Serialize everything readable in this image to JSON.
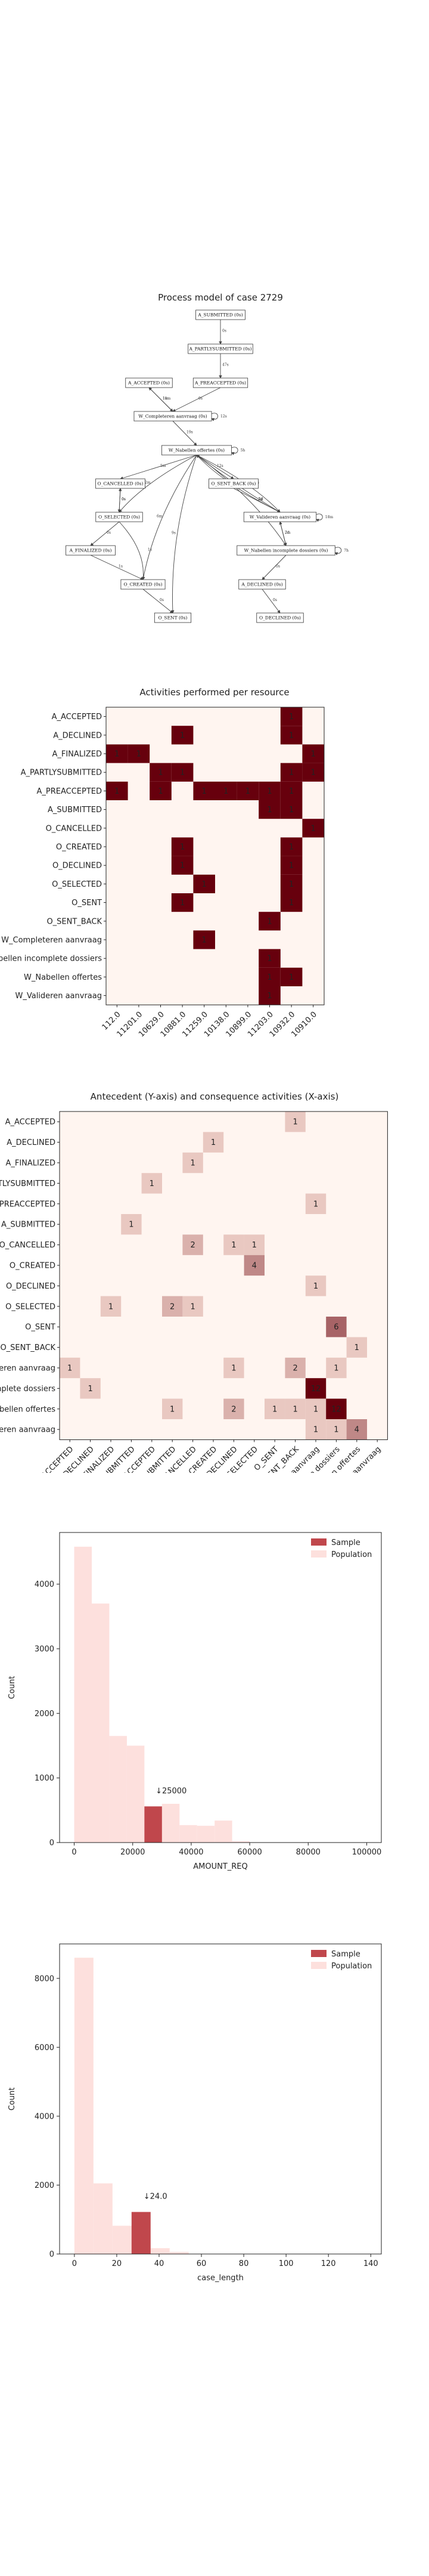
{
  "process_model": {
    "title": "Process model of case 2729",
    "nodes": [
      {
        "id": "n1",
        "label": "A_SUBMITTED (0s)"
      },
      {
        "id": "n2",
        "label": "A_PARTLYSUBMITTED (0s)"
      },
      {
        "id": "n3",
        "label": "A_ACCEPTED (0s)"
      },
      {
        "id": "n4",
        "label": "A_PREACCEPTED (0s)"
      },
      {
        "id": "n5",
        "label": "W_Completeren aanvraag (0s)"
      },
      {
        "id": "n6",
        "label": "W_Nabellen offertes (0s)"
      },
      {
        "id": "n7",
        "label": "O_CANCELLED (0s)"
      },
      {
        "id": "n8",
        "label": "O_SENT_BACK (0s)"
      },
      {
        "id": "n9",
        "label": "O_SELECTED (0s)"
      },
      {
        "id": "n10",
        "label": "W_Valideren aanvraag (0s)"
      },
      {
        "id": "n11",
        "label": "A_FINALIZED (0s)"
      },
      {
        "id": "n12",
        "label": "W_Nabellen incomplete dossiers (0s)"
      },
      {
        "id": "n13",
        "label": "O_CREATED (0s)"
      },
      {
        "id": "n14",
        "label": "A_DECLINED (0s)"
      },
      {
        "id": "n15",
        "label": "O_SENT (0s)"
      },
      {
        "id": "n16",
        "label": "O_DECLINED (0s)"
      }
    ],
    "edges": [
      {
        "from": "n1",
        "to": "n2",
        "label": "0s"
      },
      {
        "from": "n2",
        "to": "n4",
        "label": "47s"
      },
      {
        "from": "n4",
        "to": "n5",
        "label": "0s"
      },
      {
        "from": "n3",
        "to": "n5",
        "label": "11m"
      },
      {
        "from": "n5",
        "to": "n3",
        "label": "1m"
      },
      {
        "from": "n5",
        "to": "n5",
        "label": "12s"
      },
      {
        "from": "n5",
        "to": "n6",
        "label": "19s"
      },
      {
        "from": "n6",
        "to": "n6",
        "label": "5h"
      },
      {
        "from": "n6",
        "to": "n7",
        "label": "5m"
      },
      {
        "from": "n6",
        "to": "n8",
        "label": "12s"
      },
      {
        "from": "n6",
        "to": "n9",
        "label": "2m"
      },
      {
        "from": "n6",
        "to": "n13",
        "label": "6m"
      },
      {
        "from": "n6",
        "to": "n15",
        "label": "9s"
      },
      {
        "from": "n6",
        "to": "n10",
        "label": "1s"
      },
      {
        "from": "n7",
        "to": "n9",
        "label": "0s"
      },
      {
        "from": "n9",
        "to": "n7",
        "label": "0s"
      },
      {
        "from": "n8",
        "to": "n10",
        "label": "2d"
      },
      {
        "from": "n10",
        "to": "n10",
        "label": "18m"
      },
      {
        "from": "n10",
        "to": "n12",
        "label": "2d"
      },
      {
        "from": "n12",
        "to": "n10",
        "label": "7m"
      },
      {
        "from": "n12",
        "to": "n12",
        "label": "7h"
      },
      {
        "from": "n9",
        "to": "n11",
        "label": "0s"
      },
      {
        "from": "n9",
        "to": "n13",
        "label": "1s"
      },
      {
        "from": "n11",
        "to": "n13",
        "label": "1s"
      },
      {
        "from": "n13",
        "to": "n15",
        "label": "0s"
      },
      {
        "from": "n12",
        "to": "n14",
        "label": "0s"
      },
      {
        "from": "n14",
        "to": "n16",
        "label": "0s"
      },
      {
        "from": "n6",
        "to": "n12",
        "label": "2d"
      },
      {
        "from": "n10",
        "to": "n6",
        "label": "2d"
      },
      {
        "from": "n10",
        "to": "n6",
        "label": "18s"
      }
    ]
  },
  "chart_data": [
    {
      "type": "heatmap",
      "title": "Activities performed per resource",
      "rows": [
        "A_ACCEPTED",
        "A_DECLINED",
        "A_FINALIZED",
        "A_PARTLYSUBMITTED",
        "A_PREACCEPTED",
        "A_SUBMITTED",
        "O_CANCELLED",
        "O_CREATED",
        "O_DECLINED",
        "O_SELECTED",
        "O_SENT",
        "O_SENT_BACK",
        "W_Completeren aanvraag",
        "W_Nabellen incomplete dossiers",
        "W_Nabellen offertes",
        "W_Valideren aanvraag"
      ],
      "columns": [
        "112.0",
        "11201.0",
        "10629.0",
        "10881.0",
        "11259.0",
        "10138.0",
        "10899.0",
        "11203.0",
        "10932.0",
        "10910.0"
      ],
      "cells": [
        {
          "row": 0,
          "col": 8,
          "value": 1
        },
        {
          "row": 1,
          "col": 3,
          "value": 1
        },
        {
          "row": 1,
          "col": 8,
          "value": 1
        },
        {
          "row": 2,
          "col": 0,
          "value": 1
        },
        {
          "row": 2,
          "col": 1,
          "value": 1
        },
        {
          "row": 2,
          "col": 9,
          "value": 1
        },
        {
          "row": 3,
          "col": 2,
          "value": 1
        },
        {
          "row": 3,
          "col": 3,
          "value": 1
        },
        {
          "row": 3,
          "col": 8,
          "value": 1
        },
        {
          "row": 3,
          "col": 9,
          "value": 1
        },
        {
          "row": 4,
          "col": 0,
          "value": 1
        },
        {
          "row": 4,
          "col": 2,
          "value": 1
        },
        {
          "row": 4,
          "col": 4,
          "value": 1
        },
        {
          "row": 4,
          "col": 5,
          "value": 1
        },
        {
          "row": 4,
          "col": 6,
          "value": 1
        },
        {
          "row": 4,
          "col": 7,
          "value": 1
        },
        {
          "row": 4,
          "col": 8,
          "value": 1
        },
        {
          "row": 5,
          "col": 7,
          "value": 1
        },
        {
          "row": 5,
          "col": 8,
          "value": 1
        },
        {
          "row": 6,
          "col": 9,
          "value": 1
        },
        {
          "row": 7,
          "col": 3,
          "value": 1
        },
        {
          "row": 7,
          "col": 8,
          "value": 1
        },
        {
          "row": 8,
          "col": 3,
          "value": 1
        },
        {
          "row": 8,
          "col": 8,
          "value": 1
        },
        {
          "row": 9,
          "col": 4,
          "value": 1
        },
        {
          "row": 9,
          "col": 8,
          "value": 1
        },
        {
          "row": 10,
          "col": 3,
          "value": 1
        },
        {
          "row": 10,
          "col": 8,
          "value": 1
        },
        {
          "row": 11,
          "col": 7,
          "value": 1
        },
        {
          "row": 12,
          "col": 4,
          "value": 1
        },
        {
          "row": 13,
          "col": 7,
          "value": 1
        },
        {
          "row": 14,
          "col": 7,
          "value": 1
        },
        {
          "row": 14,
          "col": 8,
          "value": 1
        },
        {
          "row": 15,
          "col": 7,
          "value": 1
        }
      ],
      "colors": {
        "high": "#67000d",
        "low": "#fff5f0"
      }
    },
    {
      "type": "heatmap",
      "title": "Antecedent (Y-axis) and consequence activities (X-axis)",
      "labels": [
        "A_ACCEPTED",
        "A_DECLINED",
        "A_FINALIZED",
        "A_PARTLYSUBMITTED",
        "A_PREACCEPTED",
        "A_SUBMITTED",
        "O_CANCELLED",
        "O_CREATED",
        "O_DECLINED",
        "O_SELECTED",
        "O_SENT",
        "O_SENT_BACK",
        "W_Completeren aanvraag",
        "W_Nabellen incomplete dossiers",
        "W_Nabellen offertes",
        "W_Valideren aanvraag"
      ],
      "cells": [
        {
          "row": 0,
          "col": 11,
          "value": 1
        },
        {
          "row": 1,
          "col": 7,
          "value": 1
        },
        {
          "row": 2,
          "col": 6,
          "value": 1
        },
        {
          "row": 3,
          "col": 4,
          "value": 1
        },
        {
          "row": 4,
          "col": 12,
          "value": 1
        },
        {
          "row": 5,
          "col": 3,
          "value": 1
        },
        {
          "row": 6,
          "col": 6,
          "value": 2
        },
        {
          "row": 6,
          "col": 8,
          "value": 1
        },
        {
          "row": 6,
          "col": 9,
          "value": 1
        },
        {
          "row": 7,
          "col": 9,
          "value": 4
        },
        {
          "row": 8,
          "col": 12,
          "value": 1
        },
        {
          "row": 9,
          "col": 2,
          "value": 1
        },
        {
          "row": 9,
          "col": 5,
          "value": 2
        },
        {
          "row": 9,
          "col": 6,
          "value": 1
        },
        {
          "row": 10,
          "col": 13,
          "value": 6
        },
        {
          "row": 11,
          "col": 14,
          "value": 1
        },
        {
          "row": 12,
          "col": 0,
          "value": 1
        },
        {
          "row": 12,
          "col": 8,
          "value": 1
        },
        {
          "row": 12,
          "col": 11,
          "value": 2
        },
        {
          "row": 12,
          "col": 13,
          "value": 1
        },
        {
          "row": 13,
          "col": 1,
          "value": 1
        },
        {
          "row": 13,
          "col": 12,
          "value": 12
        },
        {
          "row": 14,
          "col": 5,
          "value": 1
        },
        {
          "row": 14,
          "col": 8,
          "value": 2
        },
        {
          "row": 14,
          "col": 10,
          "value": 1
        },
        {
          "row": 14,
          "col": 11,
          "value": 1
        },
        {
          "row": 14,
          "col": 12,
          "value": 1
        },
        {
          "row": 14,
          "col": 13,
          "value": 12
        },
        {
          "row": 15,
          "col": 12,
          "value": 1
        },
        {
          "row": 15,
          "col": 13,
          "value": 1
        },
        {
          "row": 15,
          "col": 14,
          "value": 4
        }
      ],
      "vmax": 12,
      "colors": {
        "high": "#67000d",
        "low": "#fff5f0"
      }
    },
    {
      "type": "bar",
      "title": "",
      "xlabel": "AMOUNT_REQ",
      "ylabel": "Count",
      "xlim": [
        -5000,
        105000
      ],
      "ylim": [
        0,
        4800
      ],
      "xticks": [
        0,
        20000,
        40000,
        60000,
        80000,
        100000
      ],
      "yticks": [
        0,
        1000,
        2000,
        3000,
        4000
      ],
      "legend": {
        "position": "top-right",
        "entries": [
          "Sample",
          "Population"
        ]
      },
      "annotation": "↓25000",
      "series": [
        {
          "name": "Population",
          "bins": [
            [
              0,
              6000,
              4580
            ],
            [
              6000,
              12000,
              3700
            ],
            [
              12000,
              18000,
              1650
            ],
            [
              18000,
              24000,
              1500
            ],
            [
              24000,
              30000,
              520
            ],
            [
              30000,
              36000,
              600
            ],
            [
              36000,
              42000,
              270
            ],
            [
              42000,
              48000,
              260
            ],
            [
              48000,
              54000,
              340
            ],
            [
              54000,
              60000,
              20
            ]
          ],
          "color": "#fde0dd"
        },
        {
          "name": "Sample",
          "bins": [
            [
              24000,
              30000,
              560
            ]
          ],
          "color": "#c0474c"
        }
      ]
    },
    {
      "type": "bar",
      "title": "",
      "xlabel": "case_length",
      "ylabel": "Count",
      "xlim": [
        -7,
        145
      ],
      "ylim": [
        0,
        9000
      ],
      "xticks": [
        0,
        20,
        40,
        60,
        80,
        100,
        120,
        140
      ],
      "yticks": [
        0,
        2000,
        4000,
        6000,
        8000
      ],
      "legend": {
        "position": "top-right",
        "entries": [
          "Sample",
          "Population"
        ]
      },
      "annotation": "↓24.0",
      "series": [
        {
          "name": "Population",
          "bins": [
            [
              0,
              9,
              8600
            ],
            [
              9,
              18,
              2050
            ],
            [
              18,
              27,
              820
            ],
            [
              27,
              36,
              520
            ],
            [
              36,
              45,
              170
            ],
            [
              45,
              54,
              60
            ]
          ],
          "color": "#fde0dd"
        },
        {
          "name": "Sample",
          "bins": [
            [
              27,
              36,
              1220
            ]
          ],
          "color": "#c0474c"
        }
      ]
    }
  ]
}
